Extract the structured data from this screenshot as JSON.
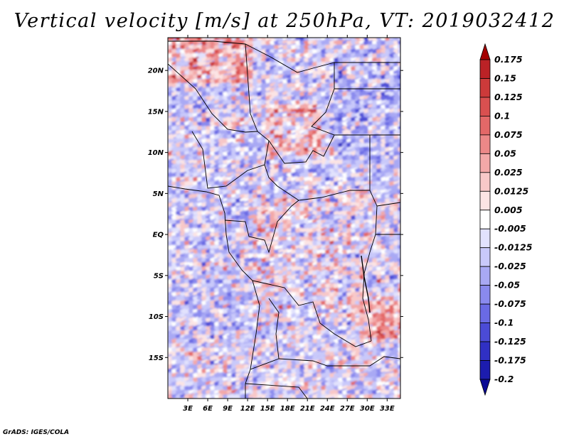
{
  "title": "Vertical velocity [m/s] at 250hPa, VT: 2019032412",
  "credit": "GrADS: IGES/COLA",
  "chart_data": {
    "type": "heatmap",
    "title": "Vertical velocity [m/s] at 250hPa, VT: 2019032412",
    "variable": "Vertical velocity",
    "units": "m/s",
    "level": "250hPa",
    "valid_time": "2019032412",
    "lon_range": [
      0,
      35
    ],
    "lat_range": [
      -20,
      24
    ],
    "x_tick_labels": [
      "3E",
      "6E",
      "9E",
      "12E",
      "15E",
      "18E",
      "21E",
      "24E",
      "27E",
      "30E",
      "33E"
    ],
    "x_tick_values": [
      3,
      6,
      9,
      12,
      15,
      18,
      21,
      24,
      27,
      30,
      33
    ],
    "y_tick_labels": [
      "20N",
      "15N",
      "10N",
      "5N",
      "EQ",
      "5S",
      "10S",
      "15S"
    ],
    "y_tick_values": [
      20,
      15,
      10,
      5,
      0,
      -5,
      -10,
      -15
    ],
    "colorbar": {
      "labels": [
        "0.175",
        "0.15",
        "0.125",
        "0.1",
        "0.075",
        "0.05",
        "0.025",
        "0.0125",
        "0.005",
        "-0.005",
        "-0.0125",
        "-0.025",
        "-0.05",
        "-0.075",
        "-0.1",
        "-0.125",
        "-0.175",
        "-0.2"
      ],
      "colors": [
        "#a40000",
        "#bb2226",
        "#cc3a3a",
        "#d95050",
        "#e36868",
        "#ec8888",
        "#f3a8a8",
        "#f8c8c8",
        "#fce4e4",
        "#ffffff",
        "#e2e2fd",
        "#c9c9fa",
        "#a9a9f4",
        "#8a8aee",
        "#6a6ae4",
        "#4b4bd6",
        "#3030c4",
        "#1c1cae",
        "#0a0a94"
      ]
    }
  }
}
